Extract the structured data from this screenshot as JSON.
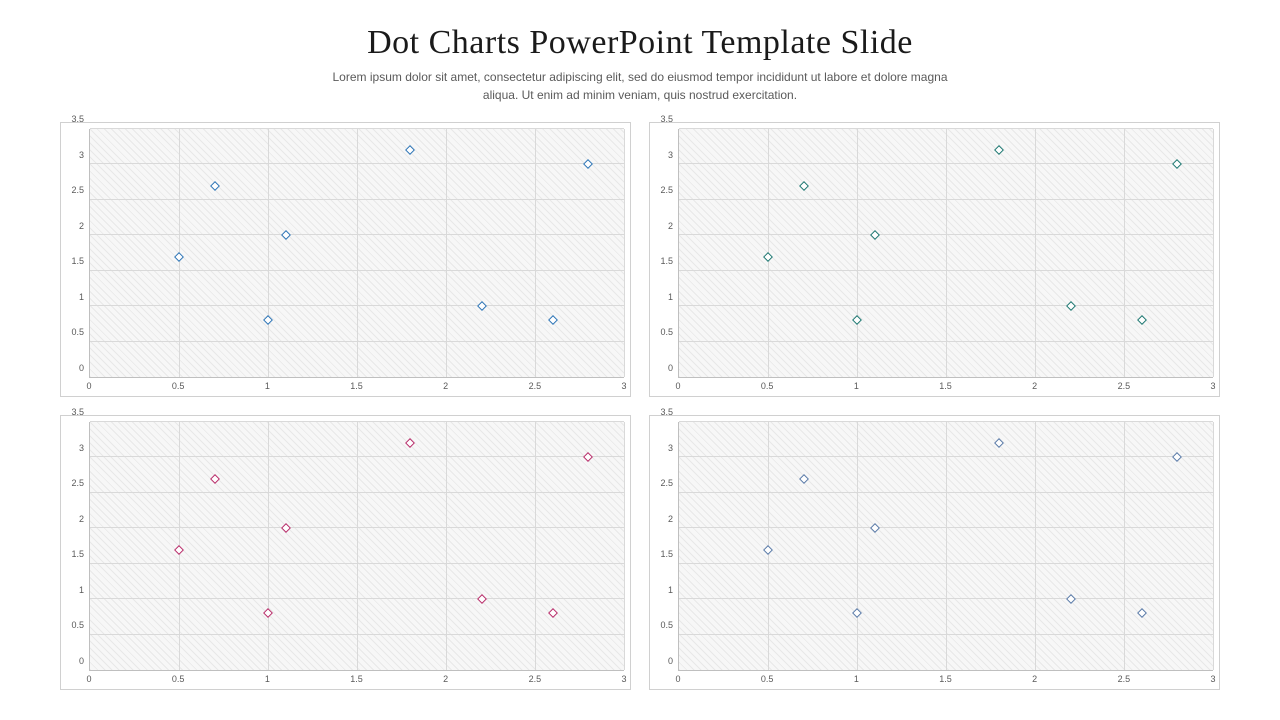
{
  "header": {
    "title": "Dot Charts PowerPoint Template Slide",
    "subtitle": "Lorem ipsum dolor sit amet, consectetur adipiscing elit, sed do eiusmod tempor incididunt ut labore et dolore magna aliqua. Ut enim ad minim veniam, quis nostrud exercitation."
  },
  "axis": {
    "xlim": [
      0,
      3
    ],
    "ylim": [
      0,
      3.5
    ],
    "xticks": [
      0,
      0.5,
      1,
      1.5,
      2,
      2.5,
      3
    ],
    "yticks": [
      0,
      0.5,
      1,
      1.5,
      2,
      2.5,
      3,
      3.5
    ],
    "tick_fontsize": 9,
    "tick_color": "#595959",
    "grid_color": "#d9d9d9",
    "plot_bg": "#f7f7f7",
    "hatch_color": "#e8e8e8",
    "border_color": "#bfbfbf"
  },
  "series_points": [
    {
      "x": 0.5,
      "y": 1.7
    },
    {
      "x": 0.7,
      "y": 2.7
    },
    {
      "x": 1.0,
      "y": 0.8
    },
    {
      "x": 1.1,
      "y": 2.0
    },
    {
      "x": 1.8,
      "y": 3.2
    },
    {
      "x": 2.2,
      "y": 1.0
    },
    {
      "x": 2.6,
      "y": 0.8
    },
    {
      "x": 2.8,
      "y": 3.0
    }
  ],
  "charts": [
    {
      "name": "chart-top-left",
      "marker_color": "#2e75b6",
      "marker_bg": "#ffffff",
      "marker_size": 7
    },
    {
      "name": "chart-top-right",
      "marker_color": "#1f7872",
      "marker_bg": "#ffffff",
      "marker_size": 7
    },
    {
      "name": "chart-bottom-left",
      "marker_color": "#b82e6b",
      "marker_bg": "#ffffff",
      "marker_size": 7
    },
    {
      "name": "chart-bottom-right",
      "marker_color": "#5b7ba8",
      "marker_bg": "#ffffff",
      "marker_size": 7
    }
  ],
  "layout": {
    "panel_border": "#d0d0d0",
    "panel_bg": "#ffffff",
    "gap": 18
  }
}
